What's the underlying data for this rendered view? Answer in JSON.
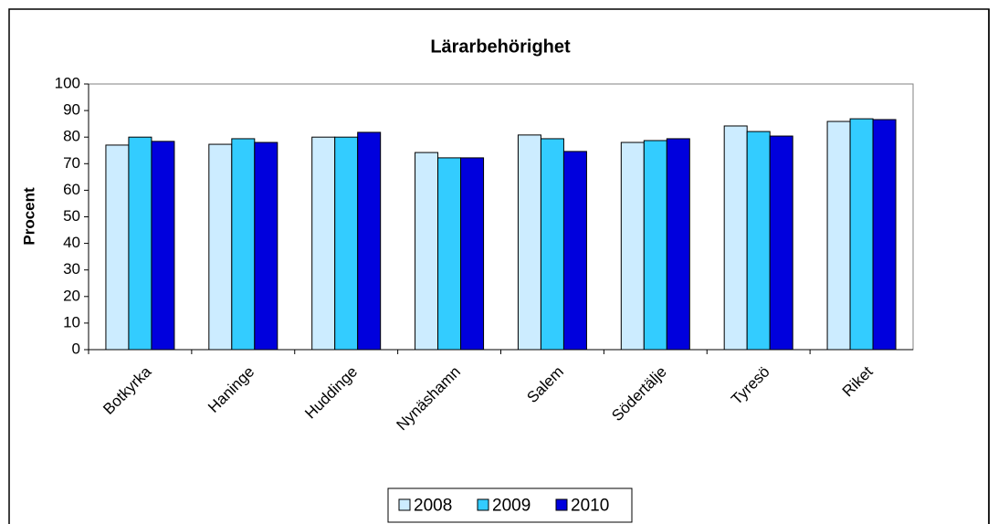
{
  "chart_data": {
    "type": "bar",
    "title": "Lärarbehörighet",
    "y_label": "Procent",
    "categories": [
      "Botkyrka",
      "Haninge",
      "Huddinge",
      "Nynäshamn",
      "Salem",
      "Södertälje",
      "Tyresö",
      "Riket"
    ],
    "series": [
      {
        "name": "2008",
        "color": "#ccecff",
        "values": [
          77.0,
          77.3,
          80.0,
          74.2,
          80.8,
          78.0,
          84.2,
          85.9
        ]
      },
      {
        "name": "2009",
        "color": "#33ccff",
        "values": [
          80.0,
          79.4,
          80.0,
          72.2,
          79.4,
          78.7,
          82.1,
          86.9
        ]
      },
      {
        "name": "2010",
        "color": "#0000dd",
        "values": [
          78.4,
          78.0,
          81.8,
          72.2,
          74.6,
          79.4,
          80.4,
          86.6
        ]
      }
    ],
    "ylim": [
      0,
      100
    ],
    "yticks": [
      0,
      10,
      20,
      30,
      40,
      50,
      60,
      70,
      80,
      90,
      100
    ],
    "grid": false,
    "legend": "bottom"
  }
}
